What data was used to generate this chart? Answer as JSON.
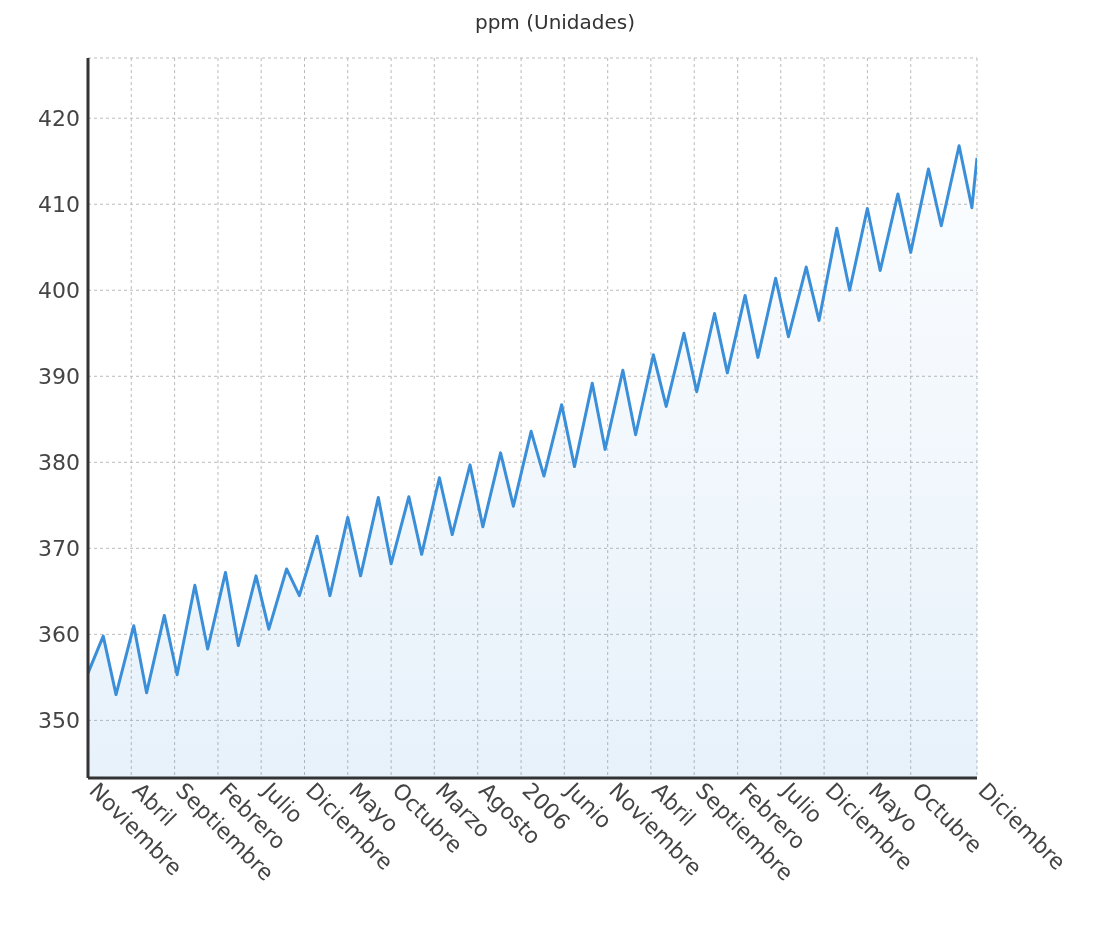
{
  "chart_data": {
    "type": "area",
    "title": "ppm (Unidades)",
    "x": [
      "1991-11",
      "1992-05",
      "1992-10",
      "1993-05",
      "1993-10",
      "1994-05",
      "1994-10",
      "1995-05",
      "1995-10",
      "1996-05",
      "1996-10",
      "1997-05",
      "1997-10",
      "1998-05",
      "1998-10",
      "1999-05",
      "1999-10",
      "2000-05",
      "2000-10",
      "2001-05",
      "2001-10",
      "2002-05",
      "2002-10",
      "2003-05",
      "2003-10",
      "2004-05",
      "2004-10",
      "2005-05",
      "2005-10",
      "2006-05",
      "2006-10",
      "2007-05",
      "2007-10",
      "2008-05",
      "2008-10",
      "2009-05",
      "2009-10",
      "2010-05",
      "2010-10",
      "2011-05",
      "2011-10",
      "2012-05",
      "2012-10",
      "2013-05",
      "2013-10",
      "2014-05",
      "2014-10",
      "2015-05",
      "2015-10",
      "2016-05",
      "2016-10",
      "2017-05",
      "2017-10",
      "2018-05",
      "2018-10",
      "2019-05",
      "2019-10",
      "2020-05",
      "2020-10",
      "2020-12"
    ],
    "series": [
      {
        "color": "#3b8fd9",
        "values": [
          355.5,
          359.8,
          353,
          361,
          353.2,
          362.2,
          355.3,
          365.7,
          358.3,
          367.2,
          358.7,
          366.8,
          360.6,
          367.6,
          364.5,
          371.4,
          364.5,
          373.6,
          366.8,
          375.9,
          368.2,
          376,
          369.3,
          378.2,
          371.6,
          379.7,
          372.5,
          381.1,
          374.9,
          383.6,
          378.4,
          386.7,
          379.5,
          389.2,
          381.5,
          390.7,
          383.2,
          392.5,
          386.5,
          395,
          388.2,
          397.3,
          390.4,
          399.4,
          392.2,
          401.4,
          394.6,
          402.7,
          396.5,
          407.2,
          400,
          409.5,
          402.3,
          411.2,
          404.4,
          414.1,
          407.5,
          416.8,
          409.6,
          415.4
        ]
      }
    ],
    "xlim": [
      "1991-11",
      "2020-12"
    ],
    "xticks": [
      {
        "value": "1991-11",
        "label": "Noviembre"
      },
      {
        "value": "1993-04",
        "label": "Abril"
      },
      {
        "value": "1994-09",
        "label": "Septiembre"
      },
      {
        "value": "1996-02",
        "label": "Febrero"
      },
      {
        "value": "1997-07",
        "label": "Julio"
      },
      {
        "value": "1998-12",
        "label": "Diciembre"
      },
      {
        "value": "2000-05",
        "label": "Mayo"
      },
      {
        "value": "2001-10",
        "label": "Octubre"
      },
      {
        "value": "2003-03",
        "label": "Marzo"
      },
      {
        "value": "2004-08",
        "label": "Agosto"
      },
      {
        "value": "2006-01",
        "label": "2006"
      },
      {
        "value": "2007-06",
        "label": "Junio"
      },
      {
        "value": "2008-11",
        "label": "Noviembre"
      },
      {
        "value": "2010-04",
        "label": "Abril"
      },
      {
        "value": "2011-09",
        "label": "Septiembre"
      },
      {
        "value": "2013-02",
        "label": "Febrero"
      },
      {
        "value": "2014-07",
        "label": "Julio"
      },
      {
        "value": "2015-12",
        "label": "Diciembre"
      },
      {
        "value": "2017-05",
        "label": "Mayo"
      },
      {
        "value": "2018-10",
        "label": "Octubre"
      },
      {
        "value": "2020-12",
        "label": "Diciembre"
      }
    ],
    "ylim": [
      343.3,
      427
    ],
    "yticks": [
      350,
      360,
      370,
      380,
      390,
      400,
      410,
      420
    ],
    "grid": true,
    "marker": "none",
    "line_style": "solid",
    "legend": false
  }
}
